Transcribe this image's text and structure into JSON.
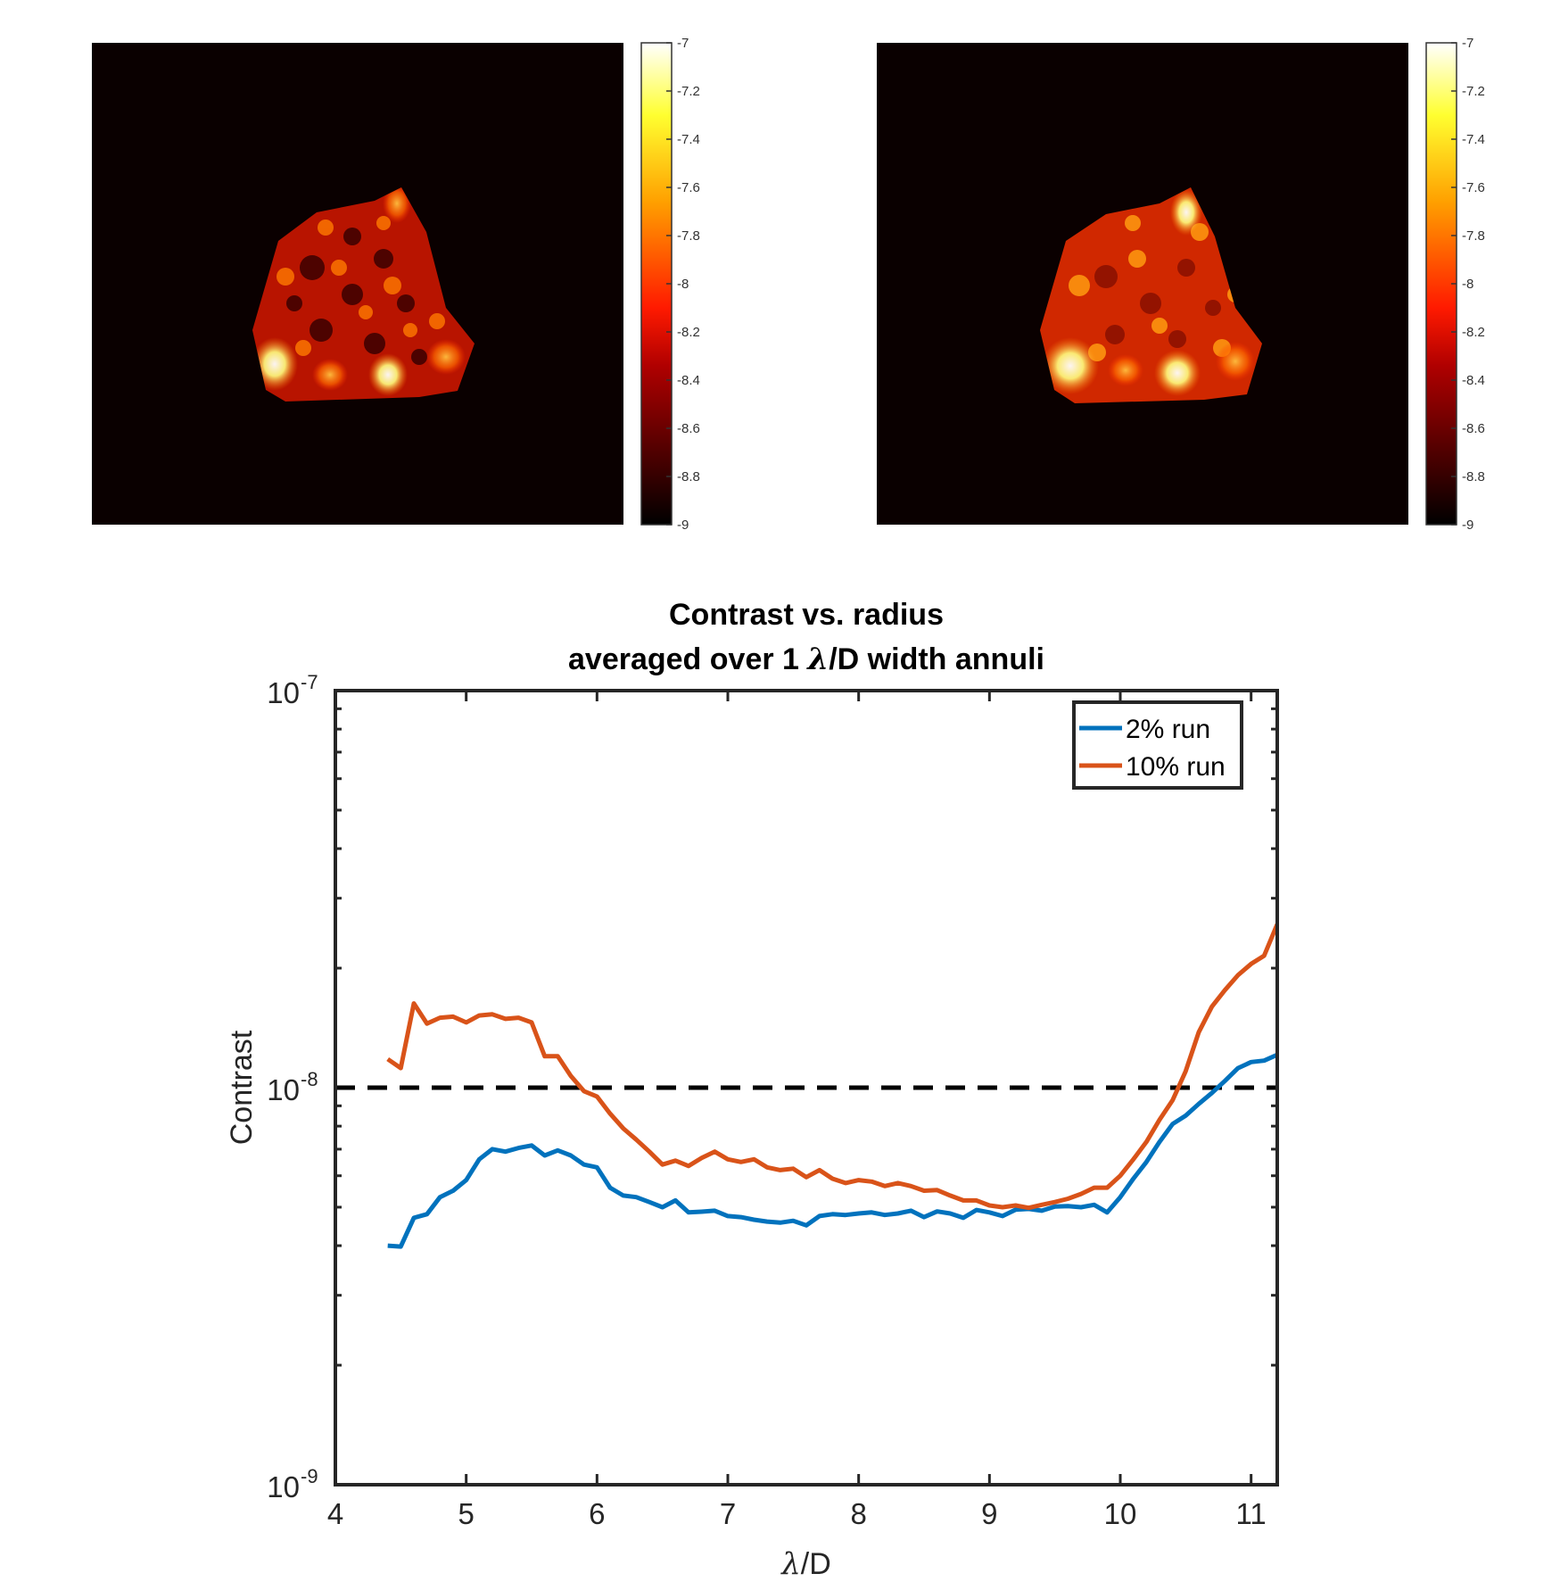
{
  "heatmaps": [
    {
      "name": "left",
      "colorbar": {
        "min": -9,
        "max": -7,
        "ticks": [
          "-7",
          "-7.2",
          "-7.4",
          "-7.6",
          "-7.8",
          "-8",
          "-8.2",
          "-8.4",
          "-8.6",
          "-8.8",
          "-9"
        ]
      }
    },
    {
      "name": "right",
      "colorbar": {
        "min": -9,
        "max": -7,
        "ticks": [
          "-7",
          "-7.2",
          "-7.4",
          "-7.6",
          "-7.8",
          "-8",
          "-8.2",
          "-8.4",
          "-8.6",
          "-8.8",
          "-9"
        ]
      }
    }
  ],
  "chart_data": {
    "type": "line",
    "title_line1": "Contrast vs. radius",
    "title_line2_pre": "averaged over 1 ",
    "title_line2_sym": "λ",
    "title_line2_post": "/D width annuli",
    "xlabel_sym": "λ",
    "xlabel_post": "/D",
    "ylabel": "Contrast",
    "xlim": [
      4,
      11.2
    ],
    "ylim": [
      1e-09,
      1e-07
    ],
    "yscale": "log",
    "x_ticks": [
      "4",
      "5",
      "6",
      "7",
      "8",
      "9",
      "10",
      "11"
    ],
    "y_ticks": [
      {
        "base": "10",
        "exp": "-9",
        "value": 1e-09
      },
      {
        "base": "10",
        "exp": "-8",
        "value": 1e-08
      },
      {
        "base": "10",
        "exp": "-7",
        "value": 1e-07
      }
    ],
    "reference_line": {
      "y": 1e-08,
      "style": "dashed",
      "color": "#000000"
    },
    "legend_position": "top-right",
    "series": [
      {
        "name": "2% run",
        "color": "#0072BD",
        "x": [
          4.4,
          4.5,
          4.6,
          4.7,
          4.8,
          4.9,
          5.0,
          5.1,
          5.2,
          5.3,
          5.4,
          5.5,
          5.6,
          5.7,
          5.8,
          5.9,
          6.0,
          6.1,
          6.2,
          6.3,
          6.4,
          6.5,
          6.6,
          6.7,
          6.8,
          6.9,
          7.0,
          7.1,
          7.2,
          7.3,
          7.4,
          7.5,
          7.6,
          7.7,
          7.8,
          7.9,
          8.0,
          8.1,
          8.2,
          8.3,
          8.4,
          8.5,
          8.6,
          8.7,
          8.8,
          8.9,
          9.0,
          9.1,
          9.2,
          9.3,
          9.4,
          9.5,
          9.6,
          9.7,
          9.8,
          9.9,
          10.0,
          10.1,
          10.2,
          10.3,
          10.4,
          10.5,
          10.6,
          10.7,
          10.8,
          10.9,
          11.0,
          11.1,
          11.2
        ],
        "y": [
          4e-09,
          3.98e-09,
          4.7e-09,
          4.8e-09,
          5.3e-09,
          5.5e-09,
          5.85e-09,
          6.6e-09,
          7e-09,
          6.9e-09,
          7.05e-09,
          7.15e-09,
          6.75e-09,
          6.95e-09,
          6.75e-09,
          6.4e-09,
          6.3e-09,
          5.6e-09,
          5.35e-09,
          5.3e-09,
          5.15e-09,
          5e-09,
          5.2e-09,
          4.85e-09,
          4.87e-09,
          4.9e-09,
          4.75e-09,
          4.72e-09,
          4.65e-09,
          4.6e-09,
          4.57e-09,
          4.62e-09,
          4.5e-09,
          4.75e-09,
          4.8e-09,
          4.78e-09,
          4.82e-09,
          4.85e-09,
          4.78e-09,
          4.82e-09,
          4.9e-09,
          4.72e-09,
          4.88e-09,
          4.82e-09,
          4.7e-09,
          4.92e-09,
          4.85e-09,
          4.75e-09,
          4.93e-09,
          4.95e-09,
          4.9e-09,
          5.02e-09,
          5.03e-09,
          5e-09,
          5.07e-09,
          4.85e-09,
          5.3e-09,
          5.9e-09,
          6.5e-09,
          7.3e-09,
          8.1e-09,
          8.5e-09,
          9.1e-09,
          9.7e-09,
          1.04e-08,
          1.12e-08,
          1.16e-08,
          1.17e-08,
          1.21e-08
        ]
      },
      {
        "name": "10% run",
        "color": "#D95319",
        "x": [
          4.4,
          4.5,
          4.6,
          4.7,
          4.8,
          4.9,
          5.0,
          5.1,
          5.2,
          5.3,
          5.4,
          5.5,
          5.6,
          5.7,
          5.8,
          5.9,
          6.0,
          6.1,
          6.2,
          6.3,
          6.4,
          6.5,
          6.6,
          6.7,
          6.8,
          6.9,
          7.0,
          7.1,
          7.2,
          7.3,
          7.4,
          7.5,
          7.6,
          7.7,
          7.8,
          7.9,
          8.0,
          8.1,
          8.2,
          8.3,
          8.4,
          8.5,
          8.6,
          8.7,
          8.8,
          8.9,
          9.0,
          9.1,
          9.2,
          9.3,
          9.4,
          9.5,
          9.6,
          9.7,
          9.8,
          9.9,
          10.0,
          10.1,
          10.2,
          10.3,
          10.4,
          10.5,
          10.6,
          10.7,
          10.8,
          10.9,
          11.0,
          11.1,
          11.2
        ],
        "y": [
          1.18e-08,
          1.12e-08,
          1.63e-08,
          1.45e-08,
          1.5e-08,
          1.51e-08,
          1.46e-08,
          1.52e-08,
          1.53e-08,
          1.49e-08,
          1.5e-08,
          1.46e-08,
          1.2e-08,
          1.2e-08,
          1.07e-08,
          9.8e-09,
          9.5e-09,
          8.6e-09,
          7.9e-09,
          7.4e-09,
          6.9e-09,
          6.4e-09,
          6.55e-09,
          6.35e-09,
          6.65e-09,
          6.9e-09,
          6.6e-09,
          6.5e-09,
          6.6e-09,
          6.3e-09,
          6.2e-09,
          6.25e-09,
          5.95e-09,
          6.2e-09,
          5.9e-09,
          5.75e-09,
          5.85e-09,
          5.8e-09,
          5.65e-09,
          5.75e-09,
          5.65e-09,
          5.5e-09,
          5.52e-09,
          5.35e-09,
          5.2e-09,
          5.2e-09,
          5.05e-09,
          5e-09,
          5.05e-09,
          4.98e-09,
          5.07e-09,
          5.15e-09,
          5.25e-09,
          5.4e-09,
          5.6e-09,
          5.6e-09,
          6e-09,
          6.6e-09,
          7.3e-09,
          8.3e-09,
          9.3e-09,
          1.1e-08,
          1.38e-08,
          1.6e-08,
          1.76e-08,
          1.92e-08,
          2.05e-08,
          2.15e-08,
          2.58e-08
        ]
      }
    ]
  }
}
